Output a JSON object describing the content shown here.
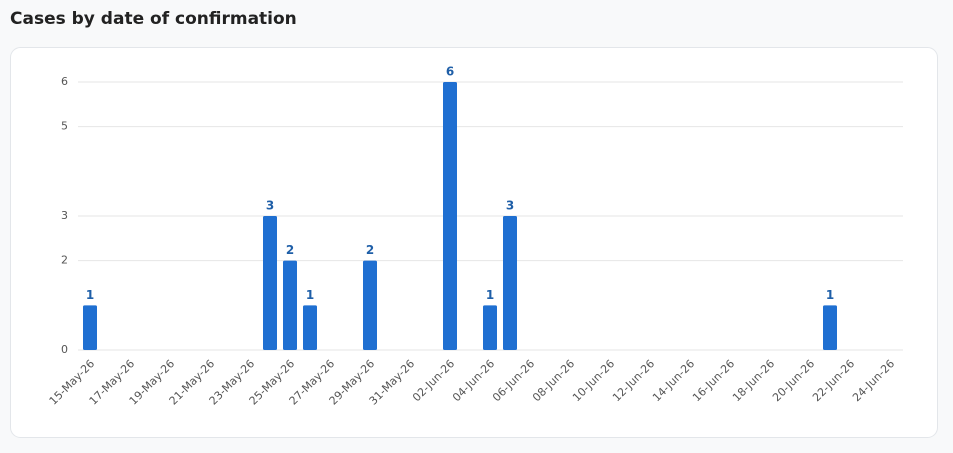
{
  "chart_data": {
    "type": "bar",
    "title": "Cases by date of confirmation",
    "categories": [
      "15-May-26",
      null,
      "17-May-26",
      null,
      "19-May-26",
      null,
      "21-May-26",
      null,
      "23-May-26",
      null,
      "25-May-26",
      null,
      "27-May-26",
      null,
      "29-May-26",
      null,
      "31-May-26",
      null,
      "02-Jun-26",
      null,
      "04-Jun-26",
      null,
      "06-Jun-26",
      null,
      "08-Jun-26",
      null,
      "10-Jun-26",
      null,
      "12-Jun-26",
      null,
      "14-Jun-26",
      null,
      "16-Jun-26",
      null,
      "18-Jun-26",
      null,
      "20-Jun-26",
      null,
      "22-Jun-26",
      null,
      "24-Jun-26"
    ],
    "values": [
      1,
      0,
      0,
      0,
      0,
      0,
      0,
      0,
      0,
      3,
      2,
      1,
      0,
      0,
      2,
      0,
      0,
      0,
      6,
      0,
      1,
      3,
      0,
      0,
      0,
      0,
      0,
      0,
      0,
      0,
      0,
      0,
      0,
      0,
      0,
      0,
      0,
      1,
      0,
      0,
      0
    ],
    "color": "#1f6fd1",
    "ylim": [
      0,
      6
    ],
    "yticks": [
      0,
      2,
      3,
      5,
      6
    ],
    "grid": true
  }
}
